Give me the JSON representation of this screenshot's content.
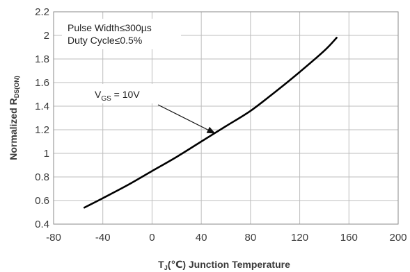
{
  "chart_data": {
    "type": "line",
    "x": [
      -55,
      -40,
      -20,
      0,
      20,
      40,
      60,
      80,
      100,
      120,
      140,
      150
    ],
    "series": [
      {
        "values": [
          0.54,
          0.62,
          0.73,
          0.85,
          0.97,
          1.1,
          1.23,
          1.36,
          1.52,
          1.69,
          1.87,
          1.98
        ]
      }
    ],
    "xlim": [
      -80,
      200
    ],
    "ylim": [
      0.4,
      2.2
    ],
    "xticks": [
      -80,
      -40,
      0,
      40,
      80,
      120,
      160,
      200
    ],
    "yticks": [
      0.4,
      0.6,
      0.8,
      1,
      1.2,
      1.4,
      1.6,
      1.8,
      2,
      2.2
    ],
    "xtick_labels": [
      "-80",
      "-40",
      "0",
      "40",
      "80",
      "120",
      "160",
      "200"
    ],
    "ytick_labels": [
      "0.4",
      "0.6",
      "0.8",
      "1",
      "1.2",
      "1.4",
      "1.6",
      "1.8",
      "2",
      "2.2"
    ],
    "grid": true,
    "line_color": "#000000",
    "xlabel": {
      "main": "T",
      "sub": "J",
      "rest": "(℃) Junction Temperature"
    },
    "ylabel": {
      "main": "Normalized R",
      "sub": "DS(ON)"
    },
    "notes": [
      "Pulse Width≤300µs",
      "Duty Cycle≤0.5%"
    ],
    "annotation": {
      "label": {
        "main": "V",
        "sub": "GS",
        "rest": " = 10V"
      },
      "points_to": {
        "x": 51,
        "y": 1.17
      }
    }
  }
}
